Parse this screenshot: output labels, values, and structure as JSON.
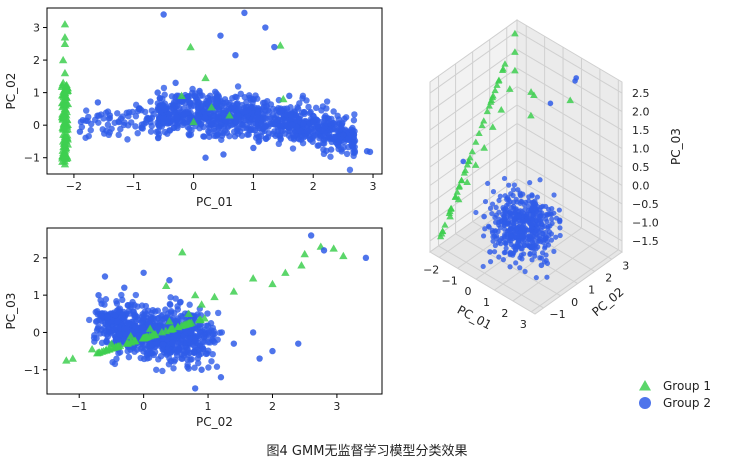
{
  "caption": "图4 GMM无监督学习模型分类效果",
  "colors": {
    "group1": "#3ecf50",
    "group2": "#2f5ce8",
    "axis": "#000000",
    "grid": "#d0d0d0"
  },
  "chart_data": [
    {
      "type": "scatter",
      "xlabel": "PC_01",
      "ylabel": "PC_02",
      "xlim": [
        -2.45,
        3.15
      ],
      "ylim": [
        -1.5,
        3.6
      ],
      "xticks": [
        -2,
        -1,
        0,
        1,
        2,
        3
      ],
      "yticks": [
        -1,
        0,
        1,
        2,
        3
      ],
      "series": [
        {
          "name": "Group 1",
          "marker": "triangle",
          "points": [
            [
              -2.15,
              3.1
            ],
            [
              -2.15,
              2.7
            ],
            [
              -2.15,
              2.5
            ],
            [
              -2.18,
              2.0
            ],
            [
              -2.15,
              1.6
            ],
            [
              -2.18,
              1.3
            ],
            [
              -2.15,
              1.0
            ],
            [
              -2.18,
              0.7
            ],
            [
              -2.15,
              0.5
            ],
            [
              -2.18,
              0.3
            ],
            [
              -2.15,
              0.1
            ],
            [
              -2.18,
              -0.1
            ],
            [
              -2.15,
              -0.3
            ],
            [
              -2.18,
              -0.5
            ],
            [
              -2.15,
              -0.8
            ],
            [
              -2.15,
              -1.2
            ],
            [
              -0.05,
              2.4
            ],
            [
              1.45,
              2.45
            ],
            [
              0.2,
              1.45
            ],
            [
              -0.2,
              0.9
            ],
            [
              0.3,
              0.55
            ],
            [
              0.6,
              0.3
            ],
            [
              1.5,
              0.8
            ],
            [
              0.0,
              0.1
            ]
          ]
        },
        {
          "name": "Group 2",
          "marker": "circle",
          "points": [
            [
              -0.5,
              3.4
            ],
            [
              0.85,
              3.45
            ],
            [
              1.2,
              3.0
            ],
            [
              0.45,
              2.75
            ],
            [
              1.35,
              2.4
            ],
            [
              0.7,
              2.15
            ],
            [
              -0.3,
              1.3
            ],
            [
              0.1,
              1.05
            ],
            [
              2.9,
              -0.8
            ],
            [
              2.95,
              -0.82
            ],
            [
              2.3,
              -0.75
            ],
            [
              -1.9,
              -0.2
            ],
            [
              -1.6,
              0.7
            ],
            [
              -0.6,
              1.0
            ],
            [
              1.6,
              0.9
            ],
            [
              2.0,
              0.1
            ],
            [
              2.5,
              -0.3
            ],
            [
              -1.4,
              0.3
            ],
            [
              -0.9,
              0.5
            ],
            [
              0.2,
              -1.0
            ],
            [
              1.0,
              -0.7
            ],
            [
              0.5,
              -0.9
            ]
          ]
        }
      ]
    },
    {
      "type": "scatter",
      "xlabel": "PC_02",
      "ylabel": "PC_03",
      "xlim": [
        -1.5,
        3.7
      ],
      "ylim": [
        -1.65,
        2.8
      ],
      "xticks": [
        -1,
        0,
        1,
        2,
        3
      ],
      "yticks": [
        -1,
        0,
        1,
        2
      ],
      "series": [
        {
          "name": "Group 1",
          "marker": "triangle",
          "points": [
            [
              -1.2,
              -0.75
            ],
            [
              -1.1,
              -0.7
            ],
            [
              -0.8,
              -0.45
            ],
            [
              -0.5,
              -0.3
            ],
            [
              -0.2,
              -0.1
            ],
            [
              0.1,
              0.1
            ],
            [
              0.4,
              0.3
            ],
            [
              0.7,
              0.5
            ],
            [
              0.9,
              0.75
            ],
            [
              1.1,
              0.95
            ],
            [
              1.4,
              1.1
            ],
            [
              2.0,
              1.3
            ],
            [
              2.2,
              1.6
            ],
            [
              2.45,
              1.8
            ],
            [
              2.5,
              2.1
            ],
            [
              2.75,
              2.3
            ],
            [
              2.95,
              2.25
            ],
            [
              3.1,
              2.05
            ],
            [
              0.6,
              2.15
            ],
            [
              0.35,
              1.25
            ],
            [
              0.8,
              1.0
            ],
            [
              1.7,
              1.45
            ]
          ]
        },
        {
          "name": "Group 2",
          "marker": "circle",
          "points": [
            [
              -0.7,
              1.0
            ],
            [
              -0.6,
              1.5
            ],
            [
              0.4,
              1.4
            ],
            [
              2.6,
              2.6
            ],
            [
              2.8,
              2.2
            ],
            [
              3.45,
              2.0
            ],
            [
              2.4,
              -0.3
            ],
            [
              2.0,
              -0.5
            ],
            [
              1.7,
              0.0
            ],
            [
              1.8,
              -0.7
            ],
            [
              1.4,
              -0.3
            ],
            [
              0.8,
              -1.5
            ],
            [
              1.2,
              -1.2
            ],
            [
              -0.3,
              1.2
            ],
            [
              0.0,
              1.6
            ],
            [
              0.9,
              -1.0
            ]
          ]
        }
      ]
    },
    {
      "type": "scatter3d",
      "xlabel": "PC_01",
      "ylabel": "PC_02",
      "zlabel": "PC_03",
      "xlim": [
        -2.5,
        3.2
      ],
      "ylim": [
        -1.5,
        3.6
      ],
      "zlim": [
        -1.8,
        2.8
      ],
      "xticks": [
        -2,
        -1,
        0,
        1,
        2,
        3
      ],
      "yticks": [
        -1,
        0,
        1,
        2,
        3
      ],
      "zticks": [
        -1.5,
        -1.0,
        -0.5,
        0.0,
        0.5,
        1.0,
        1.5,
        2.0,
        2.5
      ],
      "ztick_labels": [
        "−1.5",
        "−1.0",
        "−0.5",
        "0.0",
        "0.5",
        "1.0",
        "1.5",
        "2.0",
        "2.5"
      ],
      "series": [
        {
          "name": "Group 1",
          "marker": "triangle",
          "points": [
            [
              -2.15,
              -1.2,
              -1.3
            ],
            [
              -2.15,
              -0.7,
              -1.0
            ],
            [
              -2.15,
              -0.2,
              -0.7
            ],
            [
              -2.15,
              0.3,
              -0.4
            ],
            [
              -2.15,
              0.8,
              -0.1
            ],
            [
              -2.15,
              1.3,
              0.2
            ],
            [
              -2.15,
              1.8,
              0.6
            ],
            [
              -2.15,
              2.3,
              0.9
            ],
            [
              -2.15,
              2.8,
              1.3
            ],
            [
              -2.15,
              3.1,
              1.7
            ],
            [
              -2.15,
              3.1,
              2.2
            ],
            [
              -2.15,
              3.1,
              2.7
            ],
            [
              0.3,
              1.4,
              2.4
            ],
            [
              1.5,
              2.4,
              2.2
            ],
            [
              -0.1,
              2.0,
              2.0
            ],
            [
              0.2,
              1.5,
              1.7
            ]
          ]
        },
        {
          "name": "Group 2",
          "marker": "circle",
          "points": [
            [
              -0.5,
              3.4,
              1.2
            ],
            [
              0.9,
              3.4,
              2.3
            ],
            [
              1.3,
              2.9,
              2.5
            ],
            [
              2.9,
              -0.8,
              -0.8
            ],
            [
              -1.9,
              -0.2,
              0.4
            ],
            [
              -1.6,
              0.7,
              -1.3
            ],
            [
              -0.6,
              1.0,
              -0.6
            ],
            [
              1.6,
              0.9,
              -1.0
            ],
            [
              2.3,
              -0.7,
              -0.5
            ],
            [
              0.2,
              -0.9,
              -1.2
            ]
          ]
        }
      ]
    }
  ],
  "legend": {
    "position": "bottom-right",
    "items": [
      {
        "label": "Group 1",
        "marker": "triangle"
      },
      {
        "label": "Group 2",
        "marker": "circle"
      }
    ]
  }
}
